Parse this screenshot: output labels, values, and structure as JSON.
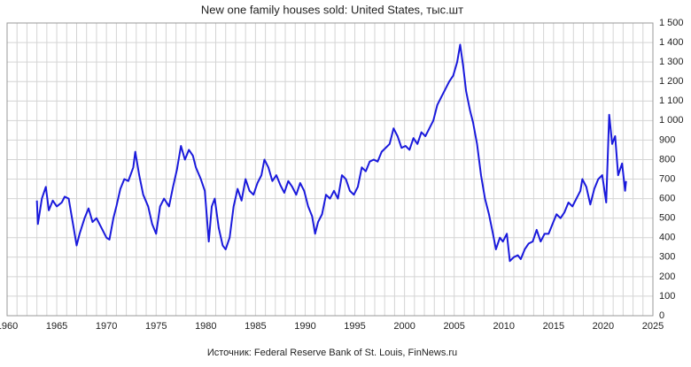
{
  "chart_data": {
    "type": "line",
    "title": "New one family houses sold: United States, тыс.шт",
    "source": "Источник: Federal Reserve Bank of St. Louis, FinNews.ru",
    "xlim": [
      1960,
      2025
    ],
    "xticks": [
      1960,
      1965,
      1970,
      1975,
      1980,
      1985,
      1990,
      1995,
      2000,
      2005,
      2010,
      2015,
      2020,
      2025
    ],
    "xminor": [
      1961,
      1962,
      1963,
      1964,
      1966,
      1967,
      1968,
      1969,
      1971,
      1972,
      1973,
      1974,
      1976,
      1977,
      1978,
      1979,
      1981,
      1982,
      1983,
      1984,
      1986,
      1987,
      1988,
      1989,
      1991,
      1992,
      1993,
      1994,
      1996,
      1997,
      1998,
      1999,
      2001,
      2002,
      2003,
      2004,
      2006,
      2007,
      2008,
      2009,
      2011,
      2012,
      2013,
      2014,
      2016,
      2017,
      2018,
      2019,
      2021,
      2022,
      2023,
      2024
    ],
    "ylim": [
      0,
      1500
    ],
    "yticks": [
      0,
      100,
      200,
      300,
      400,
      500,
      600,
      700,
      800,
      900,
      {
        "value": 1000,
        "label": "1 000"
      },
      {
        "value": 1100,
        "label": "1 100"
      },
      {
        "value": 1200,
        "label": "1 200"
      },
      {
        "value": 1300,
        "label": "1 300"
      },
      {
        "value": 1400,
        "label": "1 400"
      },
      {
        "value": 1500,
        "label": "1 500"
      }
    ],
    "grid": true,
    "x": [
      1963.0,
      1963.1,
      1963.5,
      1963.9,
      1964.2,
      1964.6,
      1965.0,
      1965.5,
      1965.8,
      1966.2,
      1966.6,
      1967.0,
      1967.3,
      1967.8,
      1968.2,
      1968.6,
      1969.0,
      1969.5,
      1970.0,
      1970.3,
      1970.7,
      1971.0,
      1971.4,
      1971.8,
      1972.2,
      1972.7,
      1972.9,
      1973.3,
      1973.7,
      1974.2,
      1974.6,
      1975.0,
      1975.4,
      1975.8,
      1976.3,
      1976.7,
      1977.1,
      1977.5,
      1977.9,
      1978.3,
      1978.7,
      1979.0,
      1979.5,
      1979.9,
      1980.3,
      1980.6,
      1980.9,
      1981.3,
      1981.7,
      1982.0,
      1982.4,
      1982.8,
      1983.2,
      1983.6,
      1984.0,
      1984.4,
      1984.8,
      1985.2,
      1985.6,
      1985.9,
      1986.3,
      1986.7,
      1987.1,
      1987.5,
      1987.9,
      1988.3,
      1988.7,
      1989.1,
      1989.5,
      1989.9,
      1990.3,
      1990.7,
      1991.0,
      1991.3,
      1991.7,
      1992.1,
      1992.5,
      1992.9,
      1993.3,
      1993.7,
      1994.1,
      1994.5,
      1994.9,
      1995.3,
      1995.7,
      1996.1,
      1996.5,
      1996.9,
      1997.3,
      1997.7,
      1998.1,
      1998.5,
      1998.9,
      1999.3,
      1999.7,
      2000.1,
      2000.5,
      2000.9,
      2001.3,
      2001.7,
      2002.1,
      2002.5,
      2002.9,
      2003.3,
      2003.7,
      2004.1,
      2004.5,
      2004.9,
      2005.3,
      2005.6,
      2005.9,
      2006.2,
      2006.6,
      2006.9,
      2007.3,
      2007.7,
      2008.1,
      2008.5,
      2008.9,
      2009.2,
      2009.6,
      2009.9,
      2010.3,
      2010.6,
      2011.0,
      2011.4,
      2011.7,
      2012.1,
      2012.5,
      2012.9,
      2013.3,
      2013.7,
      2014.1,
      2014.5,
      2014.9,
      2015.3,
      2015.7,
      2016.1,
      2016.5,
      2016.9,
      2017.3,
      2017.7,
      2017.9,
      2018.3,
      2018.7,
      2019.1,
      2019.5,
      2019.9,
      2020.3,
      2020.6,
      2020.9,
      2021.2,
      2021.5,
      2021.9,
      2022.2,
      2022.3
    ],
    "series": [
      {
        "name": "New one family houses sold",
        "color": "#1a1adc",
        "values": [
          590,
          470,
          600,
          660,
          540,
          590,
          560,
          580,
          610,
          600,
          480,
          360,
          420,
          500,
          550,
          480,
          500,
          450,
          400,
          390,
          500,
          560,
          650,
          700,
          690,
          760,
          840,
          720,
          620,
          560,
          470,
          420,
          560,
          600,
          560,
          660,
          750,
          870,
          800,
          850,
          820,
          760,
          700,
          640,
          380,
          560,
          600,
          450,
          360,
          340,
          400,
          560,
          650,
          590,
          700,
          640,
          620,
          680,
          720,
          800,
          760,
          690,
          720,
          670,
          630,
          690,
          660,
          620,
          680,
          640,
          560,
          510,
          420,
          480,
          520,
          620,
          600,
          640,
          600,
          720,
          700,
          640,
          620,
          660,
          760,
          740,
          790,
          800,
          790,
          840,
          860,
          880,
          960,
          920,
          860,
          870,
          850,
          910,
          880,
          940,
          920,
          960,
          1000,
          1080,
          1120,
          1160,
          1200,
          1230,
          1300,
          1389,
          1280,
          1150,
          1050,
          990,
          880,
          720,
          600,
          520,
          420,
          340,
          400,
          380,
          420,
          280,
          300,
          310,
          290,
          340,
          370,
          380,
          440,
          380,
          420,
          420,
          470,
          520,
          500,
          530,
          580,
          560,
          600,
          640,
          700,
          660,
          570,
          650,
          700,
          720,
          580,
          1030,
          880,
          920,
          720,
          780,
          640,
          690
        ]
      }
    ]
  }
}
